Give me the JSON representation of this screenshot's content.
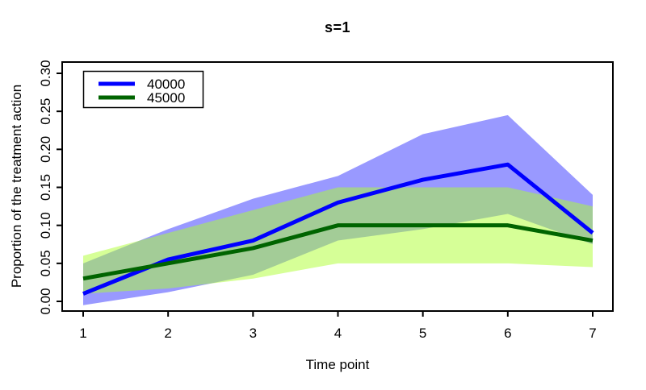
{
  "chart_data": {
    "type": "line",
    "title": "s=1",
    "xlabel": "Time point",
    "ylabel": "Proportion of the treatment action",
    "x": [
      1,
      2,
      3,
      4,
      5,
      6,
      7
    ],
    "x_tick_labels": [
      "1",
      "2",
      "3",
      "4",
      "5",
      "6",
      "7"
    ],
    "y_ticks": [
      0.0,
      0.05,
      0.1,
      0.15,
      0.2,
      0.25,
      0.3
    ],
    "y_tick_labels": [
      "0.00",
      "0.05",
      "0.10",
      "0.15",
      "0.20",
      "0.25",
      "0.30"
    ],
    "xlim": [
      1,
      7
    ],
    "ylim": [
      -0.013,
      0.315
    ],
    "grid": false,
    "legend_position": "top-left",
    "axis_color": "#000000",
    "series": [
      {
        "name": "40000",
        "color": "#0000ff",
        "band_fill": "rgba(0,0,255,0.40)",
        "values": [
          0.01,
          0.055,
          0.08,
          0.13,
          0.16,
          0.18,
          0.09
        ],
        "band_upper": [
          0.05,
          0.095,
          0.135,
          0.165,
          0.22,
          0.245,
          0.14
        ],
        "band_lower": [
          -0.005,
          0.012,
          0.035,
          0.08,
          0.095,
          0.115,
          0.075
        ]
      },
      {
        "name": "45000",
        "color": "#006400",
        "band_fill": "rgba(173,255,47,0.50)",
        "values": [
          0.03,
          0.05,
          0.07,
          0.1,
          0.1,
          0.1,
          0.08
        ],
        "band_upper": [
          0.06,
          0.09,
          0.12,
          0.15,
          0.15,
          0.15,
          0.125
        ],
        "band_lower": [
          0.01,
          0.017,
          0.03,
          0.05,
          0.05,
          0.05,
          0.045
        ]
      }
    ]
  }
}
